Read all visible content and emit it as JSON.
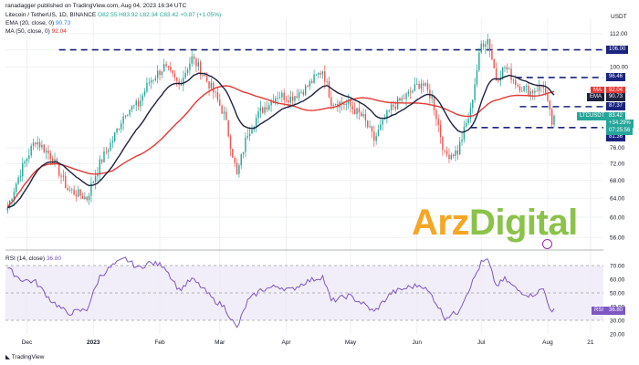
{
  "header": {
    "publisher": "ranadagger published on TradingView.com, Aug 04, 2023 16:34 UTC",
    "symbol_line": "Litecoin / TetherUS, 1D, BINANCE",
    "ohlc": "O82.55 H83.92 L82.34 C83.42 +0.87 (+1.05%)",
    "ema_label": "EMA (20, close, 0)",
    "ema_value": "90.73",
    "ma_label": "MA (50, close, 0)",
    "ma_value": "92.04"
  },
  "watermark": {
    "part1": "Arz",
    "part2": "Digital"
  },
  "footer": {
    "brand": "TradingView"
  },
  "colors": {
    "up": "#26a69a",
    "down": "#ef5350",
    "ema": "#1e2240",
    "ma": "#e53935",
    "rsi": "#7e57c2",
    "level": "#1a237e",
    "price_tag": "#26a69a"
  },
  "chart_data": [
    {
      "type": "candlestick",
      "currency": "USDT",
      "y_ticks": [
        "112.00",
        "106.00",
        "100.00",
        "96.46",
        "92.04",
        "90.73",
        "87.37",
        "83.42",
        "81.36",
        "76.00",
        "72.00",
        "68.00",
        "64.00",
        "60.00",
        "56.00"
      ],
      "x_ticks": [
        "Dec",
        "2023",
        "Feb",
        "Mar",
        "Apr",
        "May",
        "Jun",
        "Jul",
        "Aug",
        "21"
      ],
      "ylim": [
        54,
        118
      ],
      "scale": "log",
      "horizontal_levels": [
        106.0,
        96.46,
        87.37,
        81.36
      ],
      "series": [
        {
          "name": "EMA (20, close, 0)",
          "value": 90.73
        },
        {
          "name": "MA (50, close, 0)",
          "value": 92.04
        }
      ],
      "price_label": {
        "symbol": "LTCUSDT",
        "price": "83.42",
        "change": "+34.29%",
        "countdown": "07:25:56"
      },
      "anchors": [
        [
          "2022-11-22",
          62.0
        ],
        [
          "2022-11-28",
          70.0
        ],
        [
          "2022-12-05",
          78.0
        ],
        [
          "2022-12-12",
          74.0
        ],
        [
          "2022-12-20",
          66.0
        ],
        [
          "2022-12-29",
          64.0
        ],
        [
          "2023-01-04",
          72.0
        ],
        [
          "2023-01-10",
          78.0
        ],
        [
          "2023-01-16",
          86.0
        ],
        [
          "2023-01-22",
          88.0
        ],
        [
          "2023-01-27",
          95.0
        ],
        [
          "2023-02-03",
          100.0
        ],
        [
          "2023-02-10",
          94.0
        ],
        [
          "2023-02-16",
          103.0
        ],
        [
          "2023-02-20",
          99.0
        ],
        [
          "2023-02-26",
          92.0
        ],
        [
          "2023-03-03",
          85.0
        ],
        [
          "2023-03-09",
          69.0
        ],
        [
          "2023-03-14",
          80.0
        ],
        [
          "2023-03-20",
          86.0
        ],
        [
          "2023-03-28",
          91.0
        ],
        [
          "2023-04-03",
          90.0
        ],
        [
          "2023-04-10",
          93.0
        ],
        [
          "2023-04-18",
          99.0
        ],
        [
          "2023-04-22",
          89.0
        ],
        [
          "2023-04-30",
          88.0
        ],
        [
          "2023-05-07",
          84.0
        ],
        [
          "2023-05-12",
          78.0
        ],
        [
          "2023-05-20",
          87.0
        ],
        [
          "2023-05-28",
          91.0
        ],
        [
          "2023-06-03",
          95.0
        ],
        [
          "2023-06-08",
          90.0
        ],
        [
          "2023-06-14",
          74.0
        ],
        [
          "2023-06-20",
          75.0
        ],
        [
          "2023-06-26",
          86.0
        ],
        [
          "2023-07-01",
          108.0
        ],
        [
          "2023-07-04",
          110.0
        ],
        [
          "2023-07-08",
          96.0
        ],
        [
          "2023-07-12",
          100.0
        ],
        [
          "2023-07-18",
          94.0
        ],
        [
          "2023-07-24",
          92.0
        ],
        [
          "2023-07-30",
          94.0
        ],
        [
          "2023-08-01",
          88.0
        ],
        [
          "2023-08-03",
          82.5
        ],
        [
          "2023-08-04",
          83.42
        ]
      ]
    },
    {
      "type": "line",
      "indicator": "RSI",
      "title": "RSI (14, close)",
      "value": "36.80",
      "y_ticks": [
        "70.00",
        "60.00",
        "50.00",
        "40.00",
        "36.80",
        "30.00",
        "20.00"
      ],
      "ylim": [
        20,
        80
      ],
      "band": [
        30,
        70
      ],
      "anchors": [
        [
          "2022-11-22",
          68
        ],
        [
          "2022-11-28",
          60
        ],
        [
          "2022-12-05",
          58
        ],
        [
          "2022-12-12",
          45
        ],
        [
          "2022-12-20",
          35
        ],
        [
          "2022-12-29",
          38
        ],
        [
          "2023-01-04",
          62
        ],
        [
          "2023-01-10",
          70
        ],
        [
          "2023-01-16",
          75
        ],
        [
          "2023-01-22",
          68
        ],
        [
          "2023-01-27",
          72
        ],
        [
          "2023-02-03",
          70
        ],
        [
          "2023-02-10",
          52
        ],
        [
          "2023-02-16",
          60
        ],
        [
          "2023-02-20",
          55
        ],
        [
          "2023-02-26",
          45
        ],
        [
          "2023-03-03",
          40
        ],
        [
          "2023-03-09",
          24
        ],
        [
          "2023-03-14",
          44
        ],
        [
          "2023-03-20",
          52
        ],
        [
          "2023-03-28",
          55
        ],
        [
          "2023-04-03",
          52
        ],
        [
          "2023-04-10",
          58
        ],
        [
          "2023-04-18",
          62
        ],
        [
          "2023-04-22",
          44
        ],
        [
          "2023-04-30",
          48
        ],
        [
          "2023-05-07",
          42
        ],
        [
          "2023-05-12",
          36
        ],
        [
          "2023-05-20",
          50
        ],
        [
          "2023-05-28",
          54
        ],
        [
          "2023-06-03",
          56
        ],
        [
          "2023-06-08",
          48
        ],
        [
          "2023-06-14",
          32
        ],
        [
          "2023-06-20",
          36
        ],
        [
          "2023-06-26",
          55
        ],
        [
          "2023-07-01",
          72
        ],
        [
          "2023-07-04",
          74
        ],
        [
          "2023-07-08",
          55
        ],
        [
          "2023-07-12",
          60
        ],
        [
          "2023-07-18",
          52
        ],
        [
          "2023-07-24",
          48
        ],
        [
          "2023-07-30",
          53
        ],
        [
          "2023-08-01",
          44
        ],
        [
          "2023-08-03",
          35
        ],
        [
          "2023-08-04",
          36.8
        ]
      ]
    }
  ]
}
